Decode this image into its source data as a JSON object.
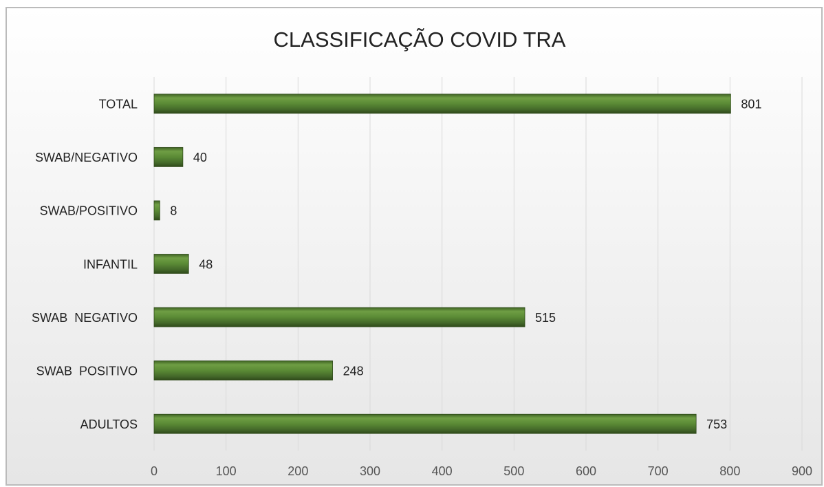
{
  "chart_data": {
    "type": "bar",
    "orientation": "horizontal",
    "title": "CLASSIFICAÇÃO COVID TRA",
    "categories": [
      "TOTAL",
      "SWAB/NEGATIVO",
      "SWAB/POSITIVO",
      "INFANTIL",
      "SWAB  NEGATIVO",
      "SWAB  POSITIVO",
      "ADULTOS"
    ],
    "values": [
      801,
      40,
      8,
      48,
      515,
      248,
      753
    ],
    "color": "#4f7b2f",
    "xlim": [
      0,
      900
    ],
    "xticks": [
      0,
      100,
      200,
      300,
      400,
      500,
      600,
      700,
      800,
      900
    ],
    "grid": true
  }
}
